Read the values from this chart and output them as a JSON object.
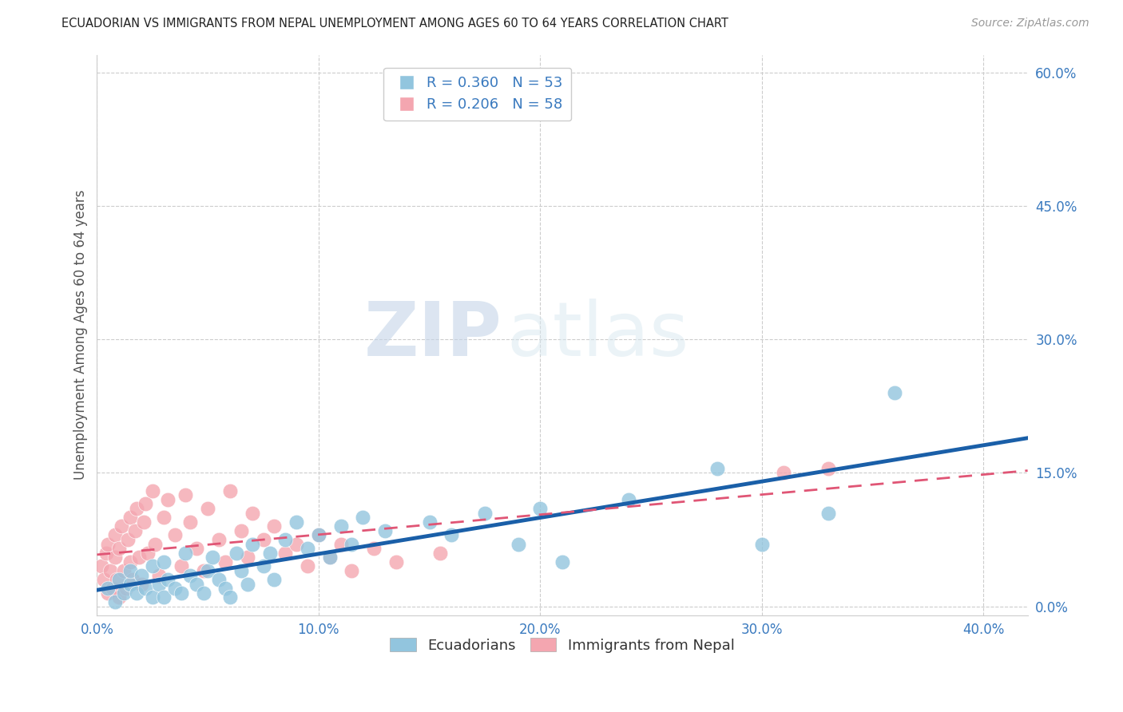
{
  "title": "ECUADORIAN VS IMMIGRANTS FROM NEPAL UNEMPLOYMENT AMONG AGES 60 TO 64 YEARS CORRELATION CHART",
  "source": "Source: ZipAtlas.com",
  "xlabel_ticks": [
    "0.0%",
    "10.0%",
    "20.0%",
    "30.0%",
    "40.0%"
  ],
  "ylabel_ticks": [
    "0.0%",
    "15.0%",
    "30.0%",
    "45.0%",
    "60.0%"
  ],
  "xlim": [
    0.0,
    0.42
  ],
  "ylim": [
    -0.01,
    0.62
  ],
  "ylabel": "Unemployment Among Ages 60 to 64 years",
  "blue_R": 0.36,
  "blue_N": 53,
  "pink_R": 0.206,
  "pink_N": 58,
  "blue_color": "#92c5de",
  "pink_color": "#f4a6b0",
  "blue_line_color": "#1a5fa8",
  "pink_line_color": "#e05575",
  "legend_label_blue": "Ecuadorians",
  "legend_label_pink": "Immigrants from Nepal",
  "watermark_zip": "ZIP",
  "watermark_atlas": "atlas",
  "blue_scatter_x": [
    0.005,
    0.008,
    0.01,
    0.012,
    0.015,
    0.015,
    0.018,
    0.02,
    0.022,
    0.025,
    0.025,
    0.028,
    0.03,
    0.03,
    0.032,
    0.035,
    0.038,
    0.04,
    0.042,
    0.045,
    0.048,
    0.05,
    0.052,
    0.055,
    0.058,
    0.06,
    0.063,
    0.065,
    0.068,
    0.07,
    0.075,
    0.078,
    0.08,
    0.085,
    0.09,
    0.095,
    0.1,
    0.105,
    0.11,
    0.115,
    0.12,
    0.13,
    0.15,
    0.16,
    0.175,
    0.19,
    0.2,
    0.21,
    0.24,
    0.28,
    0.3,
    0.33,
    0.36
  ],
  "blue_scatter_y": [
    0.02,
    0.005,
    0.03,
    0.015,
    0.025,
    0.04,
    0.015,
    0.035,
    0.02,
    0.01,
    0.045,
    0.025,
    0.01,
    0.05,
    0.03,
    0.02,
    0.015,
    0.06,
    0.035,
    0.025,
    0.015,
    0.04,
    0.055,
    0.03,
    0.02,
    0.01,
    0.06,
    0.04,
    0.025,
    0.07,
    0.045,
    0.06,
    0.03,
    0.075,
    0.095,
    0.065,
    0.08,
    0.055,
    0.09,
    0.07,
    0.1,
    0.085,
    0.095,
    0.08,
    0.105,
    0.07,
    0.11,
    0.05,
    0.12,
    0.155,
    0.07,
    0.105,
    0.24
  ],
  "pink_scatter_x": [
    0.002,
    0.003,
    0.004,
    0.005,
    0.005,
    0.006,
    0.007,
    0.008,
    0.008,
    0.009,
    0.01,
    0.01,
    0.011,
    0.012,
    0.013,
    0.014,
    0.015,
    0.015,
    0.016,
    0.017,
    0.018,
    0.019,
    0.02,
    0.021,
    0.022,
    0.023,
    0.025,
    0.026,
    0.028,
    0.03,
    0.032,
    0.035,
    0.038,
    0.04,
    0.042,
    0.045,
    0.048,
    0.05,
    0.055,
    0.058,
    0.06,
    0.065,
    0.068,
    0.07,
    0.075,
    0.08,
    0.085,
    0.09,
    0.095,
    0.1,
    0.105,
    0.11,
    0.115,
    0.125,
    0.135,
    0.155,
    0.31,
    0.33
  ],
  "pink_scatter_y": [
    0.045,
    0.03,
    0.06,
    0.015,
    0.07,
    0.04,
    0.02,
    0.055,
    0.08,
    0.03,
    0.01,
    0.065,
    0.09,
    0.04,
    0.02,
    0.075,
    0.1,
    0.05,
    0.03,
    0.085,
    0.11,
    0.055,
    0.025,
    0.095,
    0.115,
    0.06,
    0.13,
    0.07,
    0.035,
    0.1,
    0.12,
    0.08,
    0.045,
    0.125,
    0.095,
    0.065,
    0.04,
    0.11,
    0.075,
    0.05,
    0.13,
    0.085,
    0.055,
    0.105,
    0.075,
    0.09,
    0.06,
    0.07,
    0.045,
    0.08,
    0.055,
    0.07,
    0.04,
    0.065,
    0.05,
    0.06,
    0.15,
    0.155
  ]
}
